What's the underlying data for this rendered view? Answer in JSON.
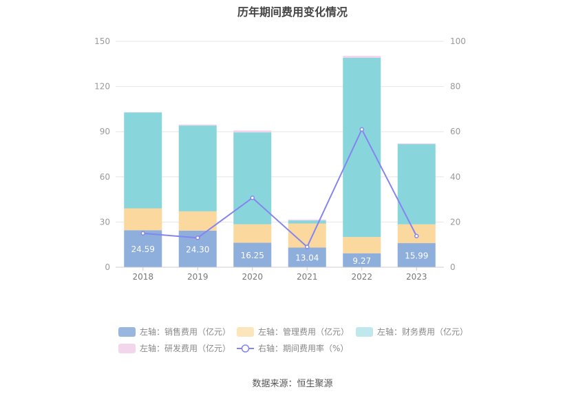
{
  "source_text": "数据来源：恒生聚源",
  "chart_data": {
    "type": "bar",
    "title": "历年期间费用变化情况",
    "categories": [
      "2018",
      "2019",
      "2020",
      "2021",
      "2022",
      "2023"
    ],
    "stacked": true,
    "left_axis": {
      "ylim": [
        0,
        150
      ],
      "ticks": [
        0,
        30,
        60,
        90,
        120,
        150
      ]
    },
    "right_axis": {
      "ylim": [
        0,
        100
      ],
      "ticks": [
        0,
        20,
        40,
        60,
        80,
        100
      ]
    },
    "grid": true,
    "legend_position": "bottom",
    "series": [
      {
        "name": "左轴：销售费用（亿元）",
        "axis": "left",
        "kind": "bar",
        "color": "#8eaedc",
        "label_color": "#ffffff",
        "values": [
          24.59,
          24.3,
          16.25,
          13.04,
          9.27,
          15.99
        ],
        "labels": [
          "24.59",
          "24.30",
          "16.25",
          "13.04",
          "9.27",
          "15.99"
        ]
      },
      {
        "name": "左轴：管理费用（亿元）",
        "axis": "left",
        "kind": "bar",
        "color": "#fbd89e",
        "values": [
          14.5,
          12.8,
          12.3,
          16.0,
          10.8,
          12.5
        ]
      },
      {
        "name": "左轴：财务费用（亿元）",
        "axis": "left",
        "kind": "bar",
        "color": "#88d5db",
        "values": [
          63.7,
          57.0,
          61.0,
          2.0,
          119.0,
          53.3
        ]
      },
      {
        "name": "左轴：研发费用（亿元）",
        "axis": "left",
        "kind": "bar",
        "color": "#f1d2ea",
        "values": [
          0.2,
          0.6,
          1.2,
          0.6,
          1.2,
          0.4
        ]
      },
      {
        "name": "右轴：期间费用率（%）",
        "axis": "right",
        "kind": "line",
        "color": "#8585f0",
        "values": [
          15.0,
          13.0,
          30.7,
          9.0,
          61.0,
          13.8
        ]
      }
    ]
  }
}
